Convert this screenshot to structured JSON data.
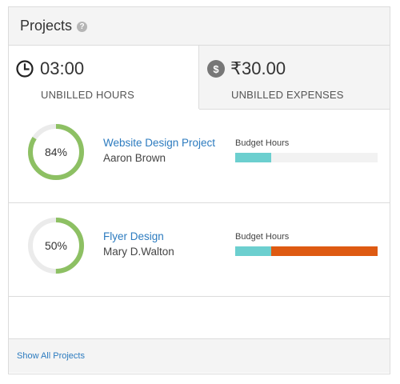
{
  "header": {
    "title": "Projects",
    "help_icon": "question-icon",
    "help_glyph": "?"
  },
  "tabs": [
    {
      "value": "03:00",
      "label": "UNBILLED HOURS",
      "icon": "clock-icon"
    },
    {
      "value": "₹30.00",
      "label": "UNBILLED EXPENSES",
      "icon": "dollar-icon",
      "icon_glyph": "$"
    }
  ],
  "projects": [
    {
      "percent_label": "84%",
      "percent": 84,
      "name": "Website Design Project",
      "owner": "Aaron Brown",
      "budget_label": "Budget Hours",
      "budget_used_fraction": 0.25,
      "budget_over_fraction": 0
    },
    {
      "percent_label": "50%",
      "percent": 50,
      "name": "Flyer Design",
      "owner": "Mary D.Walton",
      "budget_label": "Budget Hours",
      "budget_used_fraction": 0.25,
      "budget_over_fraction": 0.75
    }
  ],
  "footer": {
    "link": "Show All Projects"
  },
  "colors": {
    "ring_fill": "#8dc063",
    "ring_track": "#ebebeb",
    "bar_fill": "#6ccfcf",
    "bar_over": "#de5a12",
    "link": "#2c7bbf"
  }
}
